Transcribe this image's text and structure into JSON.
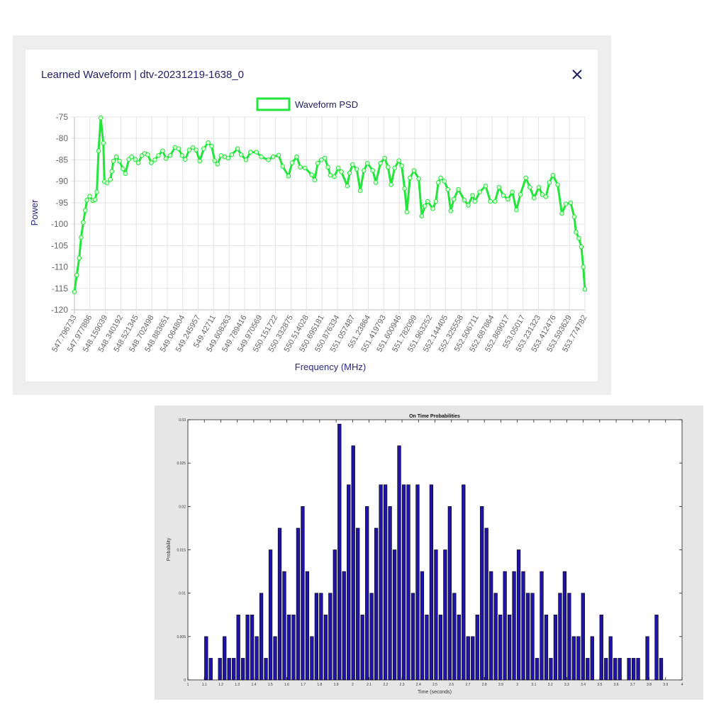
{
  "dialog": {
    "title": "Learned Waveform | dtv-20231219-1638_0",
    "close_icon": "close-icon"
  },
  "chart_data": [
    {
      "type": "line",
      "legend": {
        "label": "Waveform PSD",
        "position": "top"
      },
      "xlabel": "Frequency (MHz)",
      "ylabel": "Power",
      "ylim": [
        -120,
        -75
      ],
      "y_ticks": [
        "-75",
        "-80",
        "-85",
        "-90",
        "-95",
        "-100",
        "-105",
        "-110",
        "-115",
        "-120"
      ],
      "x_tick_labels": [
        "547.796733",
        "547.977886",
        "548.159039",
        "548.340192",
        "548.521345",
        "548.702498",
        "548.883651",
        "549.064804",
        "549.245957",
        "549.42711",
        "549.608263",
        "549.789416",
        "549.970569",
        "550.151722",
        "550.332875",
        "550.514028",
        "550.695181",
        "550.876334",
        "551.057487",
        "551.23864",
        "551.419793",
        "551.600946",
        "551.782099",
        "551.963252",
        "552.144405",
        "552.325558",
        "552.506711",
        "552.687864",
        "552.869017",
        "553.05017",
        "553.231323",
        "553.412476",
        "553.593629",
        "553.774782"
      ],
      "grid": true,
      "color": "#22e63a",
      "series": [
        {
          "name": "Waveform PSD",
          "points": [
            [
              547.797,
              -115.8
            ],
            [
              547.824,
              -111.9
            ],
            [
              547.853,
              -107.9
            ],
            [
              547.875,
              -103.1
            ],
            [
              547.9,
              -99.6
            ],
            [
              547.924,
              -96.8
            ],
            [
              547.943,
              -94.4
            ],
            [
              547.976,
              -93.5
            ],
            [
              548.011,
              -94.5
            ],
            [
              548.038,
              -94.3
            ],
            [
              548.059,
              -92.5
            ],
            [
              548.079,
              -82.9
            ],
            [
              548.105,
              -75.2
            ],
            [
              548.135,
              -81.1
            ],
            [
              548.148,
              -90.1
            ],
            [
              548.179,
              -90.4
            ],
            [
              548.217,
              -89.6
            ],
            [
              548.235,
              -87.7
            ],
            [
              548.253,
              -85.3
            ],
            [
              548.288,
              -84.3
            ],
            [
              548.324,
              -85.3
            ],
            [
              548.364,
              -87.1
            ],
            [
              548.393,
              -88.2
            ],
            [
              548.434,
              -84.9
            ],
            [
              548.467,
              -84.3
            ],
            [
              548.509,
              -84.9
            ],
            [
              548.545,
              -85.7
            ],
            [
              548.587,
              -84.0
            ],
            [
              548.619,
              -83.5
            ],
            [
              548.655,
              -83.8
            ],
            [
              548.697,
              -85.7
            ],
            [
              548.739,
              -85.0
            ],
            [
              548.78,
              -84.0
            ],
            [
              548.829,
              -82.9
            ],
            [
              548.869,
              -84.7
            ],
            [
              548.918,
              -84.0
            ],
            [
              548.974,
              -82.1
            ],
            [
              549.016,
              -82.4
            ],
            [
              549.057,
              -84.0
            ],
            [
              549.094,
              -84.9
            ],
            [
              549.141,
              -82.7
            ],
            [
              549.183,
              -82.1
            ],
            [
              549.222,
              -82.7
            ],
            [
              549.264,
              -85.3
            ],
            [
              549.311,
              -82.4
            ],
            [
              549.362,
              -81.0
            ],
            [
              549.404,
              -81.8
            ],
            [
              549.44,
              -85.2
            ],
            [
              549.472,
              -86.0
            ],
            [
              549.514,
              -84.0
            ],
            [
              549.556,
              -84.3
            ],
            [
              549.597,
              -84.6
            ],
            [
              549.639,
              -83.8
            ],
            [
              549.708,
              -82.4
            ],
            [
              549.749,
              -83.8
            ],
            [
              549.806,
              -85.0
            ],
            [
              549.86,
              -83.2
            ],
            [
              549.929,
              -83.2
            ],
            [
              549.985,
              -84.3
            ],
            [
              550.068,
              -85.0
            ],
            [
              550.123,
              -84.3
            ],
            [
              550.188,
              -83.9
            ],
            [
              550.235,
              -86.5
            ],
            [
              550.304,
              -88.8
            ],
            [
              550.346,
              -85.7
            ],
            [
              550.4,
              -84.3
            ],
            [
              550.442,
              -86.7
            ],
            [
              550.498,
              -86.9
            ],
            [
              550.576,
              -88.5
            ],
            [
              550.61,
              -89.7
            ],
            [
              550.646,
              -85.8
            ],
            [
              550.688,
              -85.0
            ],
            [
              550.729,
              -84.6
            ],
            [
              550.766,
              -86.7
            ],
            [
              550.793,
              -88.6
            ],
            [
              550.84,
              -88.9
            ],
            [
              550.887,
              -86.9
            ],
            [
              550.923,
              -87.8
            ],
            [
              550.992,
              -91.1
            ],
            [
              551.019,
              -88.1
            ],
            [
              551.054,
              -86.1
            ],
            [
              551.103,
              -87.2
            ],
            [
              551.144,
              -92.2
            ],
            [
              551.186,
              -87.5
            ],
            [
              551.228,
              -85.8
            ],
            [
              551.291,
              -87.5
            ],
            [
              551.326,
              -90.3
            ],
            [
              551.38,
              -85.8
            ],
            [
              551.431,
              -84.6
            ],
            [
              551.469,
              -86.7
            ],
            [
              551.505,
              -90.8
            ],
            [
              551.547,
              -86.9
            ],
            [
              551.596,
              -85.2
            ],
            [
              551.63,
              -86.4
            ],
            [
              551.663,
              -91.7
            ],
            [
              551.69,
              -97.2
            ],
            [
              551.726,
              -89.2
            ],
            [
              551.773,
              -87.5
            ],
            [
              551.829,
              -89.4
            ],
            [
              551.864,
              -98.1
            ],
            [
              551.9,
              -95.8
            ],
            [
              551.934,
              -94.7
            ],
            [
              551.994,
              -96.4
            ],
            [
              552.03,
              -94.7
            ],
            [
              552.057,
              -90.3
            ],
            [
              552.086,
              -89.2
            ],
            [
              552.128,
              -90.0
            ],
            [
              552.17,
              -91.9
            ],
            [
              552.204,
              -96.9
            ],
            [
              552.239,
              -94.2
            ],
            [
              552.293,
              -91.9
            ],
            [
              552.362,
              -94.4
            ],
            [
              552.409,
              -95.6
            ],
            [
              552.46,
              -93.3
            ],
            [
              552.487,
              -94.7
            ],
            [
              552.543,
              -92.5
            ],
            [
              552.612,
              -91.1
            ],
            [
              552.668,
              -94.7
            ],
            [
              552.722,
              -94.7
            ],
            [
              552.769,
              -91.4
            ],
            [
              552.82,
              -93.3
            ],
            [
              552.874,
              -94.2
            ],
            [
              552.925,
              -92.5
            ],
            [
              552.972,
              -96.7
            ],
            [
              553.019,
              -93.1
            ],
            [
              553.083,
              -89.2
            ],
            [
              553.13,
              -91.4
            ],
            [
              553.179,
              -93.9
            ],
            [
              553.235,
              -91.4
            ],
            [
              553.276,
              -93.1
            ],
            [
              553.318,
              -93.6
            ],
            [
              553.358,
              -90.3
            ],
            [
              553.4,
              -88.6
            ],
            [
              553.456,
              -90.8
            ],
            [
              553.505,
              -97.5
            ],
            [
              553.552,
              -95.3
            ],
            [
              553.608,
              -95.0
            ],
            [
              553.65,
              -98.3
            ],
            [
              553.671,
              -101.9
            ],
            [
              553.704,
              -103.3
            ],
            [
              553.733,
              -105.3
            ],
            [
              553.755,
              -110.0
            ],
            [
              553.775,
              -115.2
            ]
          ]
        }
      ]
    },
    {
      "type": "bar",
      "title": "On Time Probabilities",
      "xlabel": "Time (seconds)",
      "ylabel": "Probability",
      "xlim": [
        1,
        4
      ],
      "ylim": [
        0,
        0.03
      ],
      "x_ticks": [
        "1",
        "1.1",
        "1.2",
        "1.3",
        "1.4",
        "1.5",
        "1.6",
        "1.7",
        "1.8",
        "1.9",
        "2",
        "2.1",
        "2.2",
        "2.3",
        "2.4",
        "2.5",
        "2.6",
        "2.7",
        "2.8",
        "2.9",
        "3",
        "3.1",
        "3.2",
        "3.3",
        "3.4",
        "3.5",
        "3.6",
        "3.7",
        "3.8",
        "3.9",
        "4"
      ],
      "y_ticks": [
        "0",
        "0.005",
        "0.01",
        "0.015",
        "0.02",
        "0.025",
        "0.03"
      ],
      "color": "#1e14a8",
      "bin_start": 1.111,
      "bin_width": 0.0279,
      "values": [
        0.005,
        0.0025,
        0,
        0.0025,
        0.005,
        0.0025,
        0.0025,
        0.0075,
        0.0025,
        0.0075,
        0.0075,
        0.005,
        0.01,
        0.0025,
        0.015,
        0.005,
        0.0175,
        0.0125,
        0.0075,
        0.0075,
        0.0175,
        0.02,
        0.0125,
        0.005,
        0.01,
        0.01,
        0.0075,
        0.01,
        0.015,
        0.0295,
        0.0125,
        0.0225,
        0.027,
        0.0175,
        0.0075,
        0.02,
        0.01,
        0.0175,
        0.0225,
        0.0225,
        0.02,
        0.015,
        0.027,
        0.0225,
        0.0225,
        0.01,
        0.0225,
        0.0125,
        0.0075,
        0.0225,
        0.015,
        0.0075,
        0.015,
        0.02,
        0.01,
        0.0075,
        0.0225,
        0.005,
        0.005,
        0.0075,
        0.02,
        0.0175,
        0.0125,
        0.01,
        0.0075,
        0.0125,
        0.0075,
        0.0125,
        0.015,
        0.0125,
        0.01,
        0.01,
        0.0025,
        0.0125,
        0.0075,
        0.0025,
        0.0075,
        0.01,
        0.0125,
        0.01,
        0.005,
        0.005,
        0.01,
        0.0025,
        0.005,
        0,
        0.0075,
        0.0025,
        0.005,
        0.0025,
        0.0025,
        0,
        0.0025,
        0.0025,
        0.0025,
        0,
        0.005,
        0,
        0.0075,
        0.0025
      ]
    }
  ]
}
